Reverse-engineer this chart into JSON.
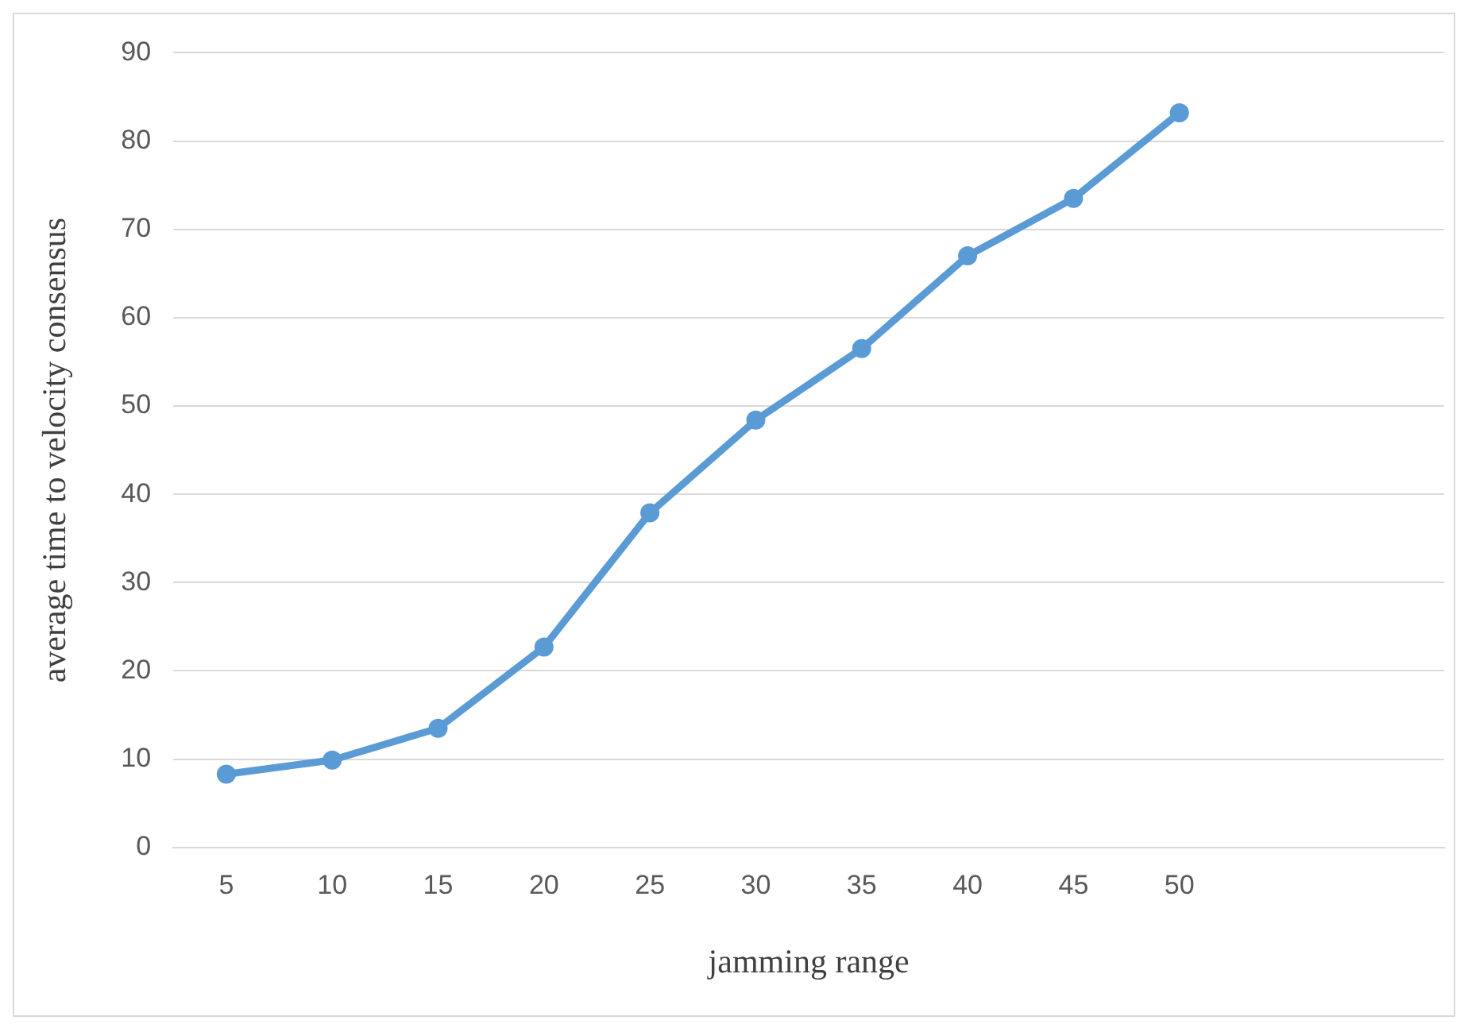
{
  "chart_data": {
    "type": "line",
    "xlabel": "jamming range",
    "ylabel": "average time to velocity consensus",
    "categories": [
      "5",
      "10",
      "15",
      "20",
      "25",
      "30",
      "35",
      "40",
      "45",
      "50",
      null,
      null
    ],
    "series": [
      {
        "color": "#5b9bd5",
        "values": [
          8.3,
          9.9,
          13.5,
          22.7,
          37.9,
          48.4,
          56.5,
          67.0,
          73.5,
          83.2,
          null,
          null
        ]
      }
    ],
    "ylim": [
      0,
      90
    ],
    "yticks": [
      0,
      10,
      20,
      30,
      40,
      50,
      60,
      70,
      80,
      90
    ],
    "grid": "y",
    "legend": false,
    "marker": "circle",
    "line_style": "solid"
  }
}
